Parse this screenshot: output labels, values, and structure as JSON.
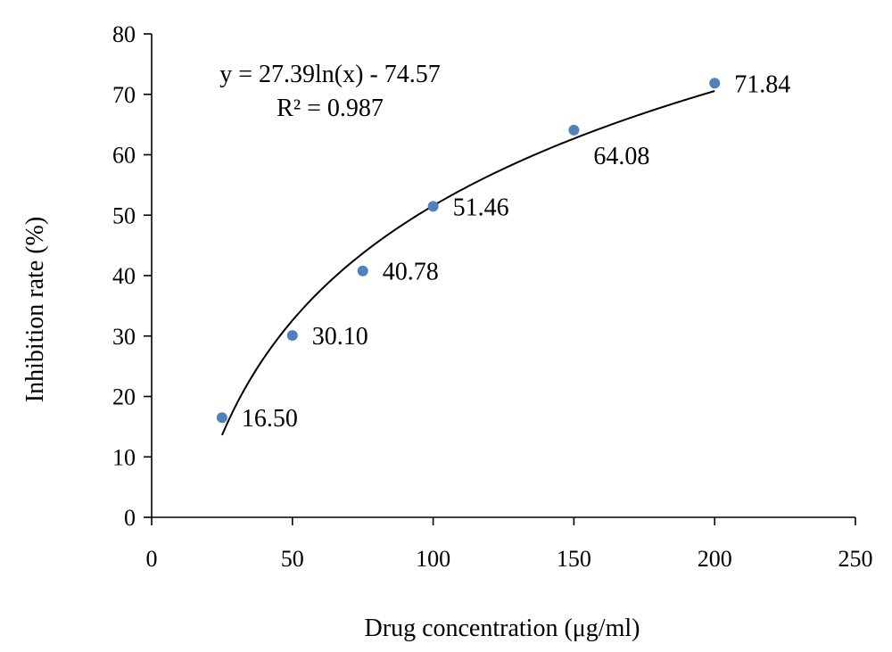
{
  "chart_data": {
    "type": "scatter",
    "title": "",
    "xlabel": "Drug concentration  (μg/ml)",
    "ylabel": "Inhibition rate (%)",
    "xlim": [
      0,
      250
    ],
    "ylim": [
      0,
      80
    ],
    "xticks": [
      0,
      50,
      100,
      150,
      200,
      250
    ],
    "yticks": [
      0,
      10,
      20,
      30,
      40,
      50,
      60,
      70,
      80
    ],
    "grid": false,
    "legend": "none",
    "marker_color": "#4f81bd",
    "points": [
      {
        "x": 25,
        "y": 16.5,
        "label": "16.50"
      },
      {
        "x": 50,
        "y": 30.1,
        "label": "30.10"
      },
      {
        "x": 75,
        "y": 40.78,
        "label": "40.78"
      },
      {
        "x": 100,
        "y": 51.46,
        "label": "51.46"
      },
      {
        "x": 150,
        "y": 64.08,
        "label": "64.08"
      },
      {
        "x": 200,
        "y": 71.84,
        "label": "71.84"
      }
    ],
    "trendline": {
      "type": "logarithmic",
      "a": 27.39,
      "b": -74.57,
      "x_range": [
        25,
        200
      ],
      "equation": "y = 27.39ln(x) - 74.57",
      "r_squared": "R² = 0.987"
    }
  }
}
